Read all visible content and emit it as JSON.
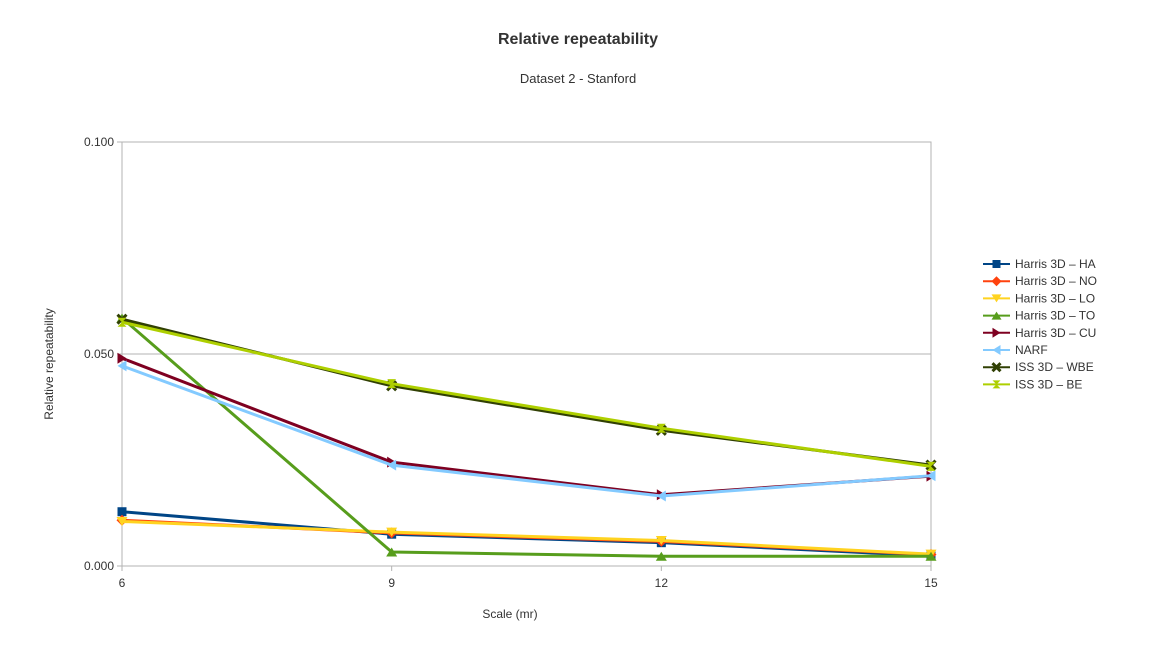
{
  "chart_data": {
    "type": "line",
    "title": "Relative repeatability",
    "subtitle": "Dataset 2 - Stanford",
    "xlabel": "Scale (mr)",
    "ylabel": "Relative repeatability",
    "x": [
      6,
      9,
      12,
      15
    ],
    "x_tick_labels": [
      "6",
      "9",
      "12",
      "15"
    ],
    "ylim": [
      0,
      0.1
    ],
    "y_tick_labels": [
      "0.000",
      "0.050",
      "0.100"
    ],
    "grid": "horizontal",
    "legend_position": "right",
    "series": [
      {
        "name": "Harris 3D – HA",
        "color": "#004586",
        "marker": "square",
        "values": [
          0.0128,
          0.0075,
          0.0055,
          0.0024
        ]
      },
      {
        "name": "Harris 3D – NO",
        "color": "#FF420E",
        "marker": "diamond",
        "values": [
          0.0108,
          0.0078,
          0.0058,
          0.0027
        ]
      },
      {
        "name": "Harris 3D – LO",
        "color": "#FFD320",
        "marker": "triangle-down",
        "values": [
          0.0105,
          0.008,
          0.006,
          0.0028
        ]
      },
      {
        "name": "Harris 3D – TO",
        "color": "#579D1C",
        "marker": "triangle-up",
        "values": [
          0.0585,
          0.0033,
          0.0023,
          0.0023
        ]
      },
      {
        "name": "Harris 3D – CU",
        "color": "#7E0021",
        "marker": "triangle-right",
        "values": [
          0.049,
          0.0245,
          0.0168,
          0.0212
        ]
      },
      {
        "name": "NARF",
        "color": "#83CAFF",
        "marker": "triangle-left",
        "values": [
          0.0472,
          0.0238,
          0.0165,
          0.0213
        ]
      },
      {
        "name": "ISS 3D – WBE",
        "color": "#314004",
        "marker": "x",
        "values": [
          0.0582,
          0.0425,
          0.032,
          0.0238
        ]
      },
      {
        "name": "ISS 3D – BE",
        "color": "#AECF00",
        "marker": "bowtie",
        "values": [
          0.0575,
          0.043,
          0.0325,
          0.0235
        ]
      }
    ]
  }
}
